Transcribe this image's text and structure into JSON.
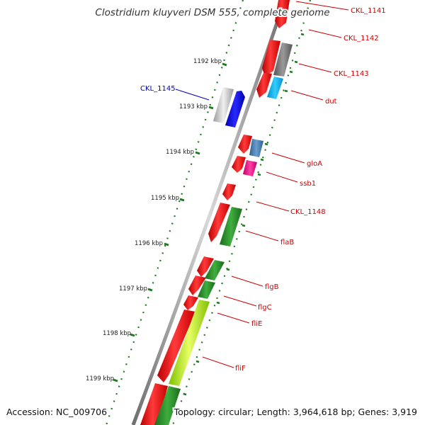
{
  "title": "Clostridium kluyveri DSM 555, complete genome",
  "footer": {
    "accession": "Accession: NC_009706",
    "summary": "Topology: circular; Length: 3,964,618 bp; Genes: 3,919"
  },
  "ticks": [
    "1192 kbp",
    "1193 kbp",
    "1194 kbp",
    "1195 kbp",
    "1196 kbp",
    "1197 kbp",
    "1198 kbp",
    "1199 kbp"
  ],
  "gene_labels": [
    {
      "name": "CKL_1141",
      "color": "#cc0000"
    },
    {
      "name": "CKL_1142",
      "color": "#cc0000"
    },
    {
      "name": "CKL_1143",
      "color": "#cc0000"
    },
    {
      "name": "CKL_1145",
      "color": "#0000cc"
    },
    {
      "name": "dut",
      "color": "#cc0000"
    },
    {
      "name": "gloA",
      "color": "#cc0000"
    },
    {
      "name": "ssb1",
      "color": "#cc0000"
    },
    {
      "name": "CKL_1148",
      "color": "#cc0000"
    },
    {
      "name": "flaB",
      "color": "#cc0000"
    },
    {
      "name": "flgB",
      "color": "#cc0000"
    },
    {
      "name": "flgC",
      "color": "#cc0000"
    },
    {
      "name": "fliE",
      "color": "#cc0000"
    },
    {
      "name": "fliF",
      "color": "#cc0000"
    }
  ],
  "colors": {
    "cds": "#ff0000",
    "backbone": "#8a8a8a",
    "gc_skew": "#2e8b2e",
    "tick": "#1f7a1f"
  }
}
